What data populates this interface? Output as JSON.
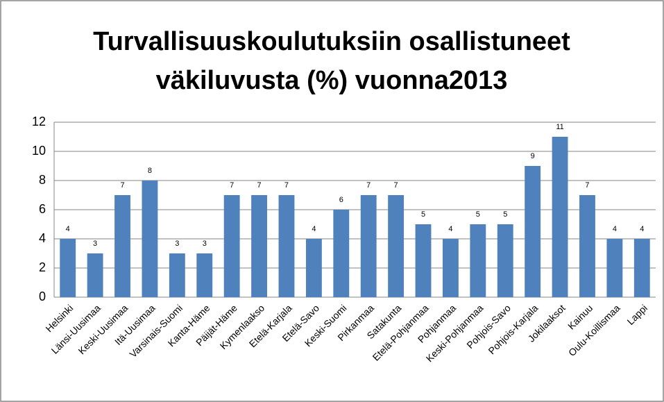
{
  "chart_data": {
    "type": "bar",
    "title": [
      "Turvallisuuskoulutuksiin osallistuneet",
      "väkiluvusta (%) vuonna2013"
    ],
    "categories": [
      "Helsinki",
      "Länsi-Uusimaa",
      "Keski-Uusimaa",
      "Itä-Uusimaa",
      "Varsinais-Suomi",
      "Kanta-Häme",
      "Päijät-Häme",
      "Kymenlaakso",
      "Etelä-Karjala",
      "Etelä-Savo",
      "Keski-Suomi",
      "Pirkanmaa",
      "Satakunta",
      "Etelä-Pohjanmaa",
      "Pohjanmaa",
      "Keski-Pohjanmaa",
      "Pohjois-Savo",
      "Pohjois-Karjala",
      "Jokilaaksot",
      "Kainuu",
      "Oulu-Koillismaa",
      "Lappi"
    ],
    "values": [
      4,
      3,
      7,
      8,
      3,
      3,
      7,
      7,
      7,
      4,
      6,
      7,
      7,
      5,
      4,
      5,
      5,
      9,
      11,
      7,
      4,
      4
    ],
    "color": "#4f81bd",
    "ylim": [
      0,
      12
    ],
    "yticks": [
      0,
      2,
      4,
      6,
      8,
      10,
      12
    ],
    "grid": true
  }
}
